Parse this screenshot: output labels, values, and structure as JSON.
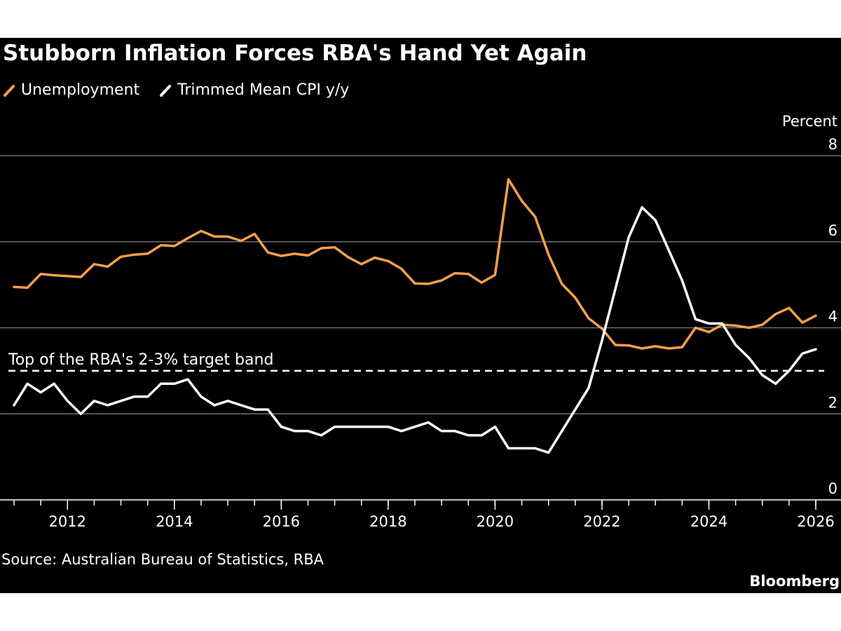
{
  "colors": {
    "background": "#000000",
    "unemployment": "#f5a04a",
    "cpi": "#ffffff",
    "grid": "#6e6e6e",
    "text": "#ffffff"
  },
  "chart_data": {
    "type": "line",
    "title": "Stubborn Inflation Forces RBA's Hand Yet Again",
    "ylabel": "Percent",
    "xlabel": "",
    "ylim": [
      0,
      8
    ],
    "xlim": [
      2011.0,
      2026.3
    ],
    "y_ticks": [
      "0",
      "2",
      "4",
      "6",
      "8"
    ],
    "x_ticks": [
      "2012",
      "2014",
      "2016",
      "2018",
      "2020",
      "2022",
      "2024",
      "2026"
    ],
    "grid": "horizontal",
    "legend_position": "top-left",
    "reference_line": {
      "y": 3.0,
      "label": "Top of the RBA's 2-3% target band",
      "style": "dashed"
    },
    "series": [
      {
        "name": "Unemployment",
        "color": "#f5a04a",
        "points": [
          [
            2011.0,
            4.95
          ],
          [
            2011.25,
            4.93
          ],
          [
            2011.5,
            5.25
          ],
          [
            2011.75,
            5.22
          ],
          [
            2012.0,
            5.2
          ],
          [
            2012.25,
            5.18
          ],
          [
            2012.5,
            5.48
          ],
          [
            2012.75,
            5.42
          ],
          [
            2013.0,
            5.65
          ],
          [
            2013.25,
            5.7
          ],
          [
            2013.5,
            5.72
          ],
          [
            2013.75,
            5.92
          ],
          [
            2014.0,
            5.9
          ],
          [
            2014.25,
            6.08
          ],
          [
            2014.5,
            6.25
          ],
          [
            2014.75,
            6.12
          ],
          [
            2015.0,
            6.12
          ],
          [
            2015.25,
            6.02
          ],
          [
            2015.5,
            6.18
          ],
          [
            2015.75,
            5.75
          ],
          [
            2016.0,
            5.67
          ],
          [
            2016.25,
            5.72
          ],
          [
            2016.5,
            5.68
          ],
          [
            2016.75,
            5.85
          ],
          [
            2017.0,
            5.87
          ],
          [
            2017.25,
            5.64
          ],
          [
            2017.5,
            5.48
          ],
          [
            2017.75,
            5.63
          ],
          [
            2018.0,
            5.55
          ],
          [
            2018.25,
            5.37
          ],
          [
            2018.5,
            5.03
          ],
          [
            2018.75,
            5.02
          ],
          [
            2019.0,
            5.1
          ],
          [
            2019.25,
            5.27
          ],
          [
            2019.5,
            5.25
          ],
          [
            2019.75,
            5.05
          ],
          [
            2020.0,
            5.23
          ],
          [
            2020.25,
            7.45
          ],
          [
            2020.5,
            6.95
          ],
          [
            2020.75,
            6.58
          ],
          [
            2021.0,
            5.7
          ],
          [
            2021.25,
            5.02
          ],
          [
            2021.5,
            4.7
          ],
          [
            2021.75,
            4.22
          ],
          [
            2022.0,
            3.98
          ],
          [
            2022.25,
            3.6
          ],
          [
            2022.5,
            3.59
          ],
          [
            2022.75,
            3.52
          ],
          [
            2023.0,
            3.57
          ],
          [
            2023.25,
            3.52
          ],
          [
            2023.5,
            3.55
          ],
          [
            2023.75,
            4.0
          ],
          [
            2024.0,
            3.9
          ],
          [
            2024.25,
            4.07
          ],
          [
            2024.5,
            4.05
          ],
          [
            2024.75,
            4.0
          ],
          [
            2025.0,
            4.07
          ],
          [
            2025.25,
            4.32
          ],
          [
            2025.5,
            4.46
          ],
          [
            2025.75,
            4.12
          ],
          [
            2026.0,
            4.28
          ]
        ]
      },
      {
        "name": "Trimmed Mean CPI y/y",
        "color": "#ffffff",
        "points": [
          [
            2011.0,
            2.2
          ],
          [
            2011.25,
            2.7
          ],
          [
            2011.5,
            2.5
          ],
          [
            2011.75,
            2.7
          ],
          [
            2012.0,
            2.3
          ],
          [
            2012.25,
            2.0
          ],
          [
            2012.5,
            2.3
          ],
          [
            2012.75,
            2.2
          ],
          [
            2013.0,
            2.3
          ],
          [
            2013.25,
            2.4
          ],
          [
            2013.5,
            2.4
          ],
          [
            2013.75,
            2.7
          ],
          [
            2014.0,
            2.7
          ],
          [
            2014.25,
            2.8
          ],
          [
            2014.5,
            2.4
          ],
          [
            2014.75,
            2.2
          ],
          [
            2015.0,
            2.3
          ],
          [
            2015.25,
            2.2
          ],
          [
            2015.5,
            2.1
          ],
          [
            2015.75,
            2.1
          ],
          [
            2016.0,
            1.7
          ],
          [
            2016.25,
            1.6
          ],
          [
            2016.5,
            1.6
          ],
          [
            2016.75,
            1.5
          ],
          [
            2017.0,
            1.7
          ],
          [
            2017.25,
            1.7
          ],
          [
            2017.5,
            1.7
          ],
          [
            2017.75,
            1.7
          ],
          [
            2018.0,
            1.7
          ],
          [
            2018.25,
            1.6
          ],
          [
            2018.5,
            1.7
          ],
          [
            2018.75,
            1.8
          ],
          [
            2019.0,
            1.6
          ],
          [
            2019.25,
            1.6
          ],
          [
            2019.5,
            1.5
          ],
          [
            2019.75,
            1.5
          ],
          [
            2020.0,
            1.7
          ],
          [
            2020.25,
            1.2
          ],
          [
            2020.5,
            1.2
          ],
          [
            2020.75,
            1.2
          ],
          [
            2021.0,
            1.1
          ],
          [
            2021.25,
            1.6
          ],
          [
            2021.5,
            2.1
          ],
          [
            2021.75,
            2.6
          ],
          [
            2022.0,
            3.7
          ],
          [
            2022.25,
            4.9
          ],
          [
            2022.5,
            6.1
          ],
          [
            2022.75,
            6.8
          ],
          [
            2023.0,
            6.5
          ],
          [
            2023.25,
            5.8
          ],
          [
            2023.5,
            5.1
          ],
          [
            2023.75,
            4.2
          ],
          [
            2024.0,
            4.1
          ],
          [
            2024.25,
            4.1
          ],
          [
            2024.5,
            3.6
          ],
          [
            2024.75,
            3.3
          ],
          [
            2025.0,
            2.9
          ],
          [
            2025.25,
            2.7
          ],
          [
            2025.5,
            3.0
          ],
          [
            2025.75,
            3.4
          ],
          [
            2026.0,
            3.5
          ]
        ]
      }
    ]
  },
  "source": "Source: Australian Bureau of Statistics, RBA",
  "brand": "Bloomberg"
}
